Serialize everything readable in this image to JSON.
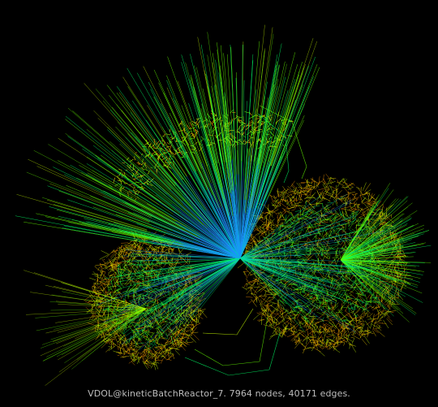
{
  "caption": "VDOL@kineticBatchReactor_7. 7964 nodes, 40171 edges.",
  "graph": {
    "nodes": 7964,
    "edges": 40171,
    "background": "#000000",
    "edge_colors": [
      "#1e90ff",
      "#00c8c8",
      "#00ff66",
      "#66ff00",
      "#ccff00",
      "#ffd700",
      "#ff9900"
    ]
  }
}
